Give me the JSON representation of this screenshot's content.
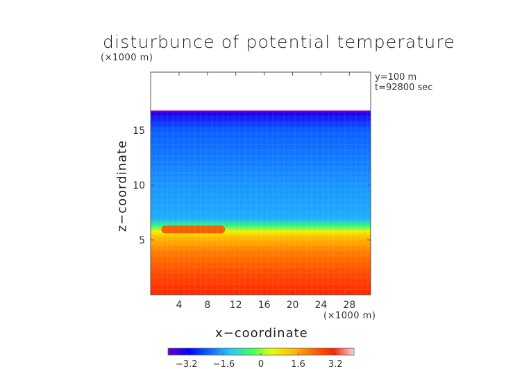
{
  "chart_data": {
    "type": "heatmap",
    "title": "disturbunce of potential temperature",
    "yunit": "(×1000 m)",
    "xunit": "(×1000 m)",
    "xlabel": "x−coordinate",
    "ylabel": "z−coordinate",
    "annotation": {
      "y_line": "y=100 m",
      "t_line": "t=92800 sec"
    },
    "xlim": [
      0,
      30
    ],
    "ylim": [
      0,
      20
    ],
    "xticks": [
      {
        "value": 4,
        "label": "4"
      },
      {
        "value": 8,
        "label": "8"
      },
      {
        "value": 12,
        "label": "12"
      },
      {
        "value": 16,
        "label": "16"
      },
      {
        "value": 20,
        "label": "20"
      },
      {
        "value": 24,
        "label": "24"
      },
      {
        "value": 28,
        "label": "28"
      }
    ],
    "yticks": [
      {
        "value": 5,
        "label": "5"
      },
      {
        "value": 10,
        "label": "10"
      },
      {
        "value": 15,
        "label": "15"
      }
    ],
    "colorbar": {
      "min": -4,
      "max": 4,
      "ticks": [
        {
          "value": -3.2,
          "label": "−3.2"
        },
        {
          "value": -1.6,
          "label": "−1.6"
        },
        {
          "value": 0,
          "label": "0"
        },
        {
          "value": 1.6,
          "label": "1.6"
        },
        {
          "value": 3.2,
          "label": "3.2"
        }
      ]
    },
    "field_profile": [
      {
        "z": 0.0,
        "value": 3.0
      },
      {
        "z": 2.0,
        "value": 2.6
      },
      {
        "z": 4.0,
        "value": 2.0
      },
      {
        "z": 5.2,
        "value": 1.4
      },
      {
        "z": 5.8,
        "value": 0.6
      },
      {
        "z": 6.3,
        "value": -0.6
      },
      {
        "z": 7.0,
        "value": -1.6
      },
      {
        "z": 10.0,
        "value": -1.8
      },
      {
        "z": 15.0,
        "value": -2.3
      },
      {
        "z": 16.6,
        "value": -3.3
      }
    ],
    "warm_intrusion": {
      "x_range": [
        1.5,
        10.5
      ],
      "z_range": [
        5.6,
        6.3
      ],
      "value": 2.6
    },
    "domain_top": {
      "z": 16.7,
      "note": "white region above"
    }
  },
  "colors": {
    "scale": [
      "#6a00c8",
      "#0000ff",
      "#0a66ff",
      "#27c8ff",
      "#33ff66",
      "#e6ff00",
      "#ffc000",
      "#ff6a00",
      "#ff2000",
      "#ffd0e0"
    ]
  }
}
